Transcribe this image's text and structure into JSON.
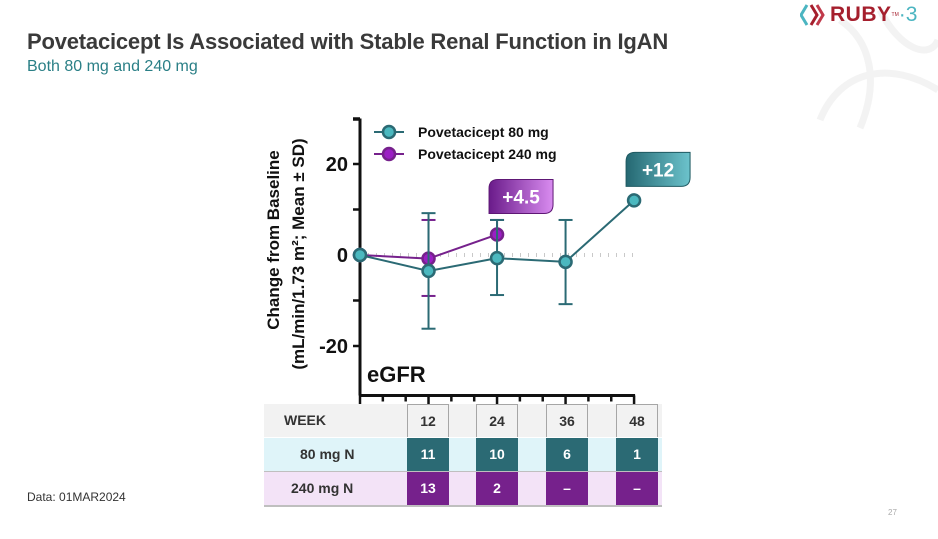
{
  "header": {
    "title": "Povetacicept Is Associated with Stable Renal Function in IgAN",
    "subtitle": "Both 80 mg and 240 mg"
  },
  "logo": {
    "text": "RUBY",
    "tm": "TM",
    "separator": "·",
    "number": "3",
    "icon": "ruby-chevron-logo-icon"
  },
  "footnote": "Data: 01MAR2024",
  "page_number": "27",
  "colors": {
    "teal": "#2b6a74",
    "teal_marker": "#4bb8bf",
    "purple": "#76218c",
    "purple_marker": "#9b1fc4",
    "title": "#3a3a3a",
    "subtitle": "#2a7f86"
  },
  "chart_data": {
    "type": "line",
    "title": "",
    "panel_label": "eGFR",
    "xlabel": "Week",
    "ylabel_line1": "Change from Baseline",
    "ylabel_line2": "(mL/min/1.73 m²; Mean ± SD)",
    "ylim": [
      -30,
      30
    ],
    "yticks": [
      -20,
      0,
      20
    ],
    "ytick_labels": [
      "-20",
      "0",
      "20"
    ],
    "xlim": [
      0,
      48
    ],
    "x_minor_step": 6,
    "grid": false,
    "zero_reference_line": true,
    "legend": {
      "placement": "top-left"
    },
    "series": [
      {
        "name": "Povetacicept 80 mg",
        "color": "#2b6a74",
        "marker_color": "#4bb8bf",
        "x": [
          0,
          12,
          24,
          36,
          48
        ],
        "values": [
          0,
          -3.5,
          -0.7,
          -1.5,
          12
        ],
        "sd_upper": [
          null,
          9.2,
          7.7,
          7.7,
          null
        ],
        "sd_lower": [
          null,
          -16.2,
          -8.8,
          -10.8,
          null
        ]
      },
      {
        "name": "Povetacicept 240 mg",
        "color": "#76218c",
        "marker_color": "#9b1fc4",
        "x": [
          0,
          12,
          24
        ],
        "values": [
          0,
          -0.8,
          4.5
        ],
        "sd_upper": [
          null,
          7.7,
          7.7
        ],
        "sd_lower": [
          null,
          -9.0,
          null
        ]
      }
    ],
    "annotations": [
      {
        "text": "+4.5",
        "series": "Povetacicept 240 mg",
        "x": 24
      },
      {
        "text": "+12",
        "series": "Povetacicept 80 mg",
        "x": 48
      }
    ]
  },
  "table": {
    "header_label": "WEEK",
    "weeks": [
      "12",
      "24",
      "36",
      "48"
    ],
    "rows": [
      {
        "label": "80 mg N",
        "values": [
          "11",
          "10",
          "6",
          "1"
        ]
      },
      {
        "label": "240 mg N",
        "values": [
          "13",
          "2",
          "–",
          "–"
        ]
      }
    ]
  }
}
